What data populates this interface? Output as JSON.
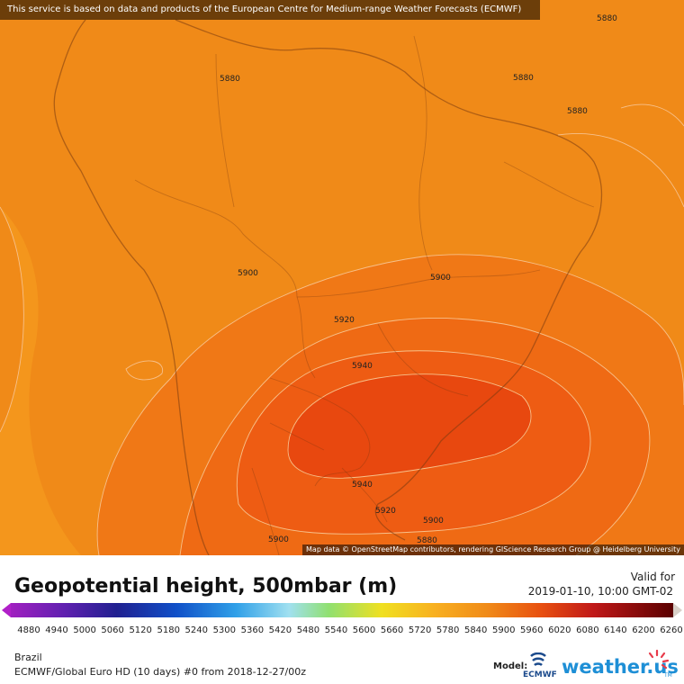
{
  "banner": "This service is based on data and products of the European Centre for Medium-range Weather Forecasts (ECMWF)",
  "attribution": "Map data © OpenStreetMap contributors, rendering GIScience Research Group @ Heidelberg University",
  "contour_labels": [
    "5880",
    "5880",
    "5880",
    "5880",
    "5900",
    "5900",
    "5920",
    "5940",
    "5940",
    "5920",
    "5900",
    "5880",
    "5900"
  ],
  "title": "Geopotential height, 500mbar (m)",
  "valid_label": "Valid for",
  "valid_time": "2019-01-10, 10:00 GMT-02",
  "scale_ticks": [
    "4880",
    "4940",
    "5000",
    "5060",
    "5120",
    "5180",
    "5240",
    "5300",
    "5360",
    "5420",
    "5480",
    "5540",
    "5600",
    "5660",
    "5720",
    "5780",
    "5840",
    "5900",
    "5960",
    "6020",
    "6080",
    "6140",
    "6200",
    "6260"
  ],
  "region": "Brazil",
  "model_run": "ECMWF/Global Euro HD (10 days) #0 from 2018-12-27/00z",
  "model_label": "Model:",
  "ecmwf_logo_text": "ECMWF",
  "brand_text": "weather.us",
  "brand_tm": "TM",
  "colors": {
    "field_base": "#f08a18",
    "field_mid": "#f06e14",
    "field_high": "#ec4e12",
    "field_max": "#e8420f",
    "brand_blue": "#1e8fd6",
    "ecmwf_blue": "#1b4a8c"
  }
}
